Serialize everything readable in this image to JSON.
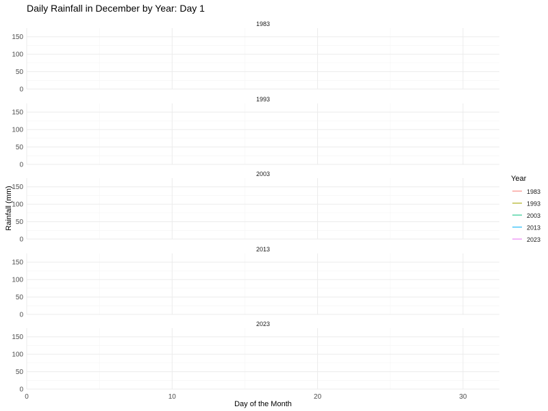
{
  "chart_data": {
    "type": "line",
    "title": "Daily Rainfall in December by Year: Day 1",
    "xlabel": "Day of the Month",
    "ylabel": "Rainfall (mm)",
    "xlim": [
      0,
      32.5
    ],
    "ylim": [
      0,
      175
    ],
    "x_ticks": [
      0,
      10,
      20,
      30
    ],
    "y_ticks": [
      0,
      50,
      100,
      150
    ],
    "grid": true,
    "legend_position": "right",
    "legend_title": "Year",
    "facets": [
      "1983",
      "1993",
      "2003",
      "2013",
      "2023"
    ],
    "series": [
      {
        "name": "1983",
        "color": "#F8766D",
        "x": [],
        "y": []
      },
      {
        "name": "1993",
        "color": "#A3A500",
        "x": [],
        "y": []
      },
      {
        "name": "2003",
        "color": "#00BF7D",
        "x": [],
        "y": []
      },
      {
        "name": "2013",
        "color": "#00B0F6",
        "x": [],
        "y": []
      },
      {
        "name": "2023",
        "color": "#E76BF3",
        "x": [],
        "y": []
      }
    ]
  }
}
